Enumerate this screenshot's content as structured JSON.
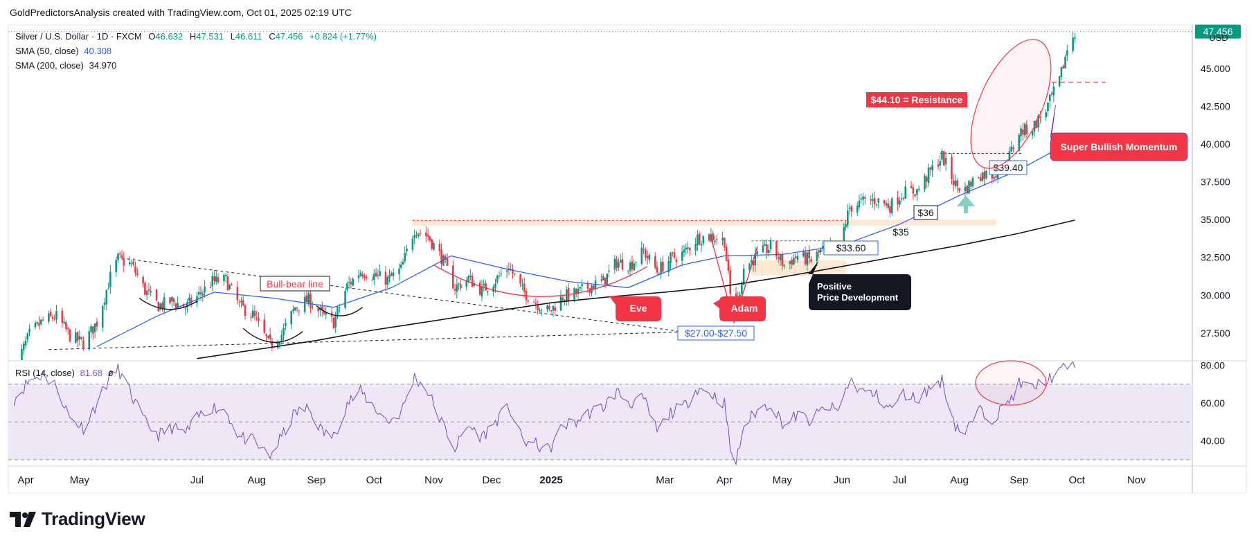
{
  "header": "GoldPredictorsAnalysis created with TradingView.com, Oct 01, 2025 02:19 UTC",
  "brand": "TradingView",
  "currency_label": "USD",
  "legend": {
    "symbol": "Silver / U.S. Dollar · 1D · FXCM",
    "o_label": "O",
    "o": "46.632",
    "h_label": "H",
    "h": "47.531",
    "l_label": "L",
    "l": "46.611",
    "c_label": "C",
    "c": "47.456",
    "change": "+0.824 (+1.77%)",
    "sma50_label": "SMA (50, close)",
    "sma50_value": "40.308",
    "sma200_label": "SMA (200, close)",
    "sma200_value": "34.970",
    "rsi_label": "RSI (14, close)",
    "rsi_value": "81.68",
    "rsi_extra": "ø"
  },
  "last_price_tag": "47.456",
  "colors": {
    "up": "#089981",
    "down": "#f23645",
    "sma50": "#2962ff",
    "sma200": "#131722",
    "rsi": "#7e57c2",
    "rsi_band": "#ede7f6",
    "annotation_red": "#f23645",
    "annotation_dark": "#131722",
    "resistance_bg": "#f23645"
  },
  "annotations": {
    "resistance": "$44.10 = Resistance",
    "momentum": "Super Bullish Momentum",
    "bull_bear": "Bull-bear line",
    "eve": "Eve",
    "adam": "Adam",
    "support_range": "$27.00-$27.50",
    "level_3360": "$33.60",
    "level_35": "$35",
    "level_36": "$36",
    "level_3940": "$39.40",
    "positive_line1": "Positive",
    "positive_line2": "Price Development"
  },
  "chart_data": [
    {
      "type": "candlestick",
      "title": "Silver / U.S. Dollar · 1D · FXCM",
      "x_range": [
        "2024-03-25",
        "2025-11-30"
      ],
      "ylim": [
        25.7,
        47.9
      ],
      "y_ticks": [
        "27.500",
        "30.000",
        "32.500",
        "35.000",
        "37.500",
        "40.000",
        "42.500",
        "45.000"
      ],
      "x_ticks": [
        "Apr",
        "May",
        "Jul",
        "Aug",
        "Sep",
        "Oct",
        "Nov",
        "Dec",
        "2025",
        "Mar",
        "Apr",
        "May",
        "Jun",
        "Jul",
        "Aug",
        "Sep",
        "Oct",
        "Nov"
      ],
      "close_path": [
        [
          "2024-03-28",
          25.0
        ],
        [
          "2024-04-05",
          27.4
        ],
        [
          "2024-04-12",
          28.3
        ],
        [
          "2024-04-19",
          28.6
        ],
        [
          "2024-04-26",
          27.3
        ],
        [
          "2024-05-03",
          26.8
        ],
        [
          "2024-05-10",
          28.2
        ],
        [
          "2024-05-17",
          31.2
        ],
        [
          "2024-05-21",
          32.4
        ],
        [
          "2024-05-28",
          32.0
        ],
        [
          "2024-06-04",
          30.3
        ],
        [
          "2024-06-11",
          29.3
        ],
        [
          "2024-06-18",
          29.6
        ],
        [
          "2024-06-25",
          29.2
        ],
        [
          "2024-07-02",
          30.0
        ],
        [
          "2024-07-09",
          30.9
        ],
        [
          "2024-07-16",
          31.0
        ],
        [
          "2024-07-23",
          29.3
        ],
        [
          "2024-07-30",
          28.7
        ],
        [
          "2024-08-05",
          27.3
        ],
        [
          "2024-08-08",
          26.7
        ],
        [
          "2024-08-14",
          27.4
        ],
        [
          "2024-08-21",
          29.2
        ],
        [
          "2024-08-28",
          29.7
        ],
        [
          "2024-09-04",
          28.7
        ],
        [
          "2024-09-10",
          28.2
        ],
        [
          "2024-09-17",
          30.6
        ],
        [
          "2024-09-24",
          31.6
        ],
        [
          "2024-10-01",
          31.3
        ],
        [
          "2024-10-08",
          31.0
        ],
        [
          "2024-10-15",
          31.7
        ],
        [
          "2024-10-22",
          34.4
        ],
        [
          "2024-10-29",
          33.9
        ],
        [
          "2024-11-05",
          32.5
        ],
        [
          "2024-11-12",
          30.5
        ],
        [
          "2024-11-19",
          31.1
        ],
        [
          "2024-11-26",
          30.3
        ],
        [
          "2024-12-03",
          31.0
        ],
        [
          "2024-12-10",
          31.9
        ],
        [
          "2024-12-17",
          30.3
        ],
        [
          "2024-12-24",
          29.5
        ],
        [
          "2024-12-31",
          28.9
        ],
        [
          "2025-01-07",
          29.9
        ],
        [
          "2025-01-14",
          30.1
        ],
        [
          "2025-01-21",
          30.6
        ],
        [
          "2025-01-28",
          30.9
        ],
        [
          "2025-02-04",
          32.2
        ],
        [
          "2025-02-11",
          32.0
        ],
        [
          "2025-02-18",
          32.9
        ],
        [
          "2025-02-25",
          31.6
        ],
        [
          "2025-03-04",
          32.4
        ],
        [
          "2025-03-11",
          32.8
        ],
        [
          "2025-03-18",
          33.8
        ],
        [
          "2025-03-25",
          33.9
        ],
        [
          "2025-04-01",
          33.6
        ],
        [
          "2025-04-04",
          30.0
        ],
        [
          "2025-04-08",
          29.7
        ],
        [
          "2025-04-11",
          31.8
        ],
        [
          "2025-04-18",
          32.6
        ],
        [
          "2025-04-25",
          33.2
        ],
        [
          "2025-05-02",
          32.0
        ],
        [
          "2025-05-09",
          32.6
        ],
        [
          "2025-05-16",
          32.3
        ],
        [
          "2025-05-23",
          33.1
        ],
        [
          "2025-05-30",
          33.0
        ],
        [
          "2025-06-05",
          35.8
        ],
        [
          "2025-06-12",
          36.2
        ],
        [
          "2025-06-19",
          36.3
        ],
        [
          "2025-06-26",
          35.9
        ],
        [
          "2025-07-03",
          36.8
        ],
        [
          "2025-07-10",
          36.9
        ],
        [
          "2025-07-17",
          38.2
        ],
        [
          "2025-07-23",
          39.2
        ],
        [
          "2025-07-30",
          37.3
        ],
        [
          "2025-08-04",
          37.0
        ],
        [
          "2025-08-11",
          38.0
        ],
        [
          "2025-08-18",
          38.0
        ],
        [
          "2025-08-25",
          38.6
        ],
        [
          "2025-09-01",
          40.8
        ],
        [
          "2025-09-08",
          41.1
        ],
        [
          "2025-09-15",
          42.3
        ],
        [
          "2025-09-22",
          44.2
        ],
        [
          "2025-09-26",
          46.3
        ],
        [
          "2025-09-30",
          47.456
        ]
      ],
      "series": [
        {
          "name": "SMA (50, close)",
          "points": [
            [
              "2024-05-10",
              26.6
            ],
            [
              "2024-06-10",
              28.6
            ],
            [
              "2024-07-10",
              30.2
            ],
            [
              "2024-08-10",
              29.8
            ],
            [
              "2024-09-10",
              29.2
            ],
            [
              "2024-10-10",
              30.5
            ],
            [
              "2024-11-10",
              32.6
            ],
            [
              "2024-12-10",
              31.7
            ],
            [
              "2025-01-10",
              30.9
            ],
            [
              "2025-02-10",
              30.5
            ],
            [
              "2025-03-10",
              32.0
            ],
            [
              "2025-04-01",
              32.6
            ],
            [
              "2025-05-01",
              32.7
            ],
            [
              "2025-06-01",
              33.3
            ],
            [
              "2025-07-01",
              34.7
            ],
            [
              "2025-08-01",
              36.6
            ],
            [
              "2025-09-01",
              38.3
            ],
            [
              "2025-09-30",
              40.308
            ]
          ]
        },
        {
          "name": "SMA (200, close)",
          "points": [
            [
              "2024-07-01",
              25.8
            ],
            [
              "2024-08-01",
              26.4
            ],
            [
              "2024-09-01",
              27.0
            ],
            [
              "2024-10-01",
              27.7
            ],
            [
              "2024-11-01",
              28.3
            ],
            [
              "2024-12-01",
              28.9
            ],
            [
              "2025-01-01",
              29.5
            ],
            [
              "2025-02-01",
              29.9
            ],
            [
              "2025-03-01",
              30.2
            ],
            [
              "2025-04-01",
              30.6
            ],
            [
              "2025-05-01",
              31.2
            ],
            [
              "2025-06-01",
              31.9
            ],
            [
              "2025-07-01",
              32.6
            ],
            [
              "2025-08-01",
              33.3
            ],
            [
              "2025-09-01",
              34.1
            ],
            [
              "2025-09-30",
              34.97
            ]
          ]
        }
      ],
      "levels": [
        44.1,
        39.4,
        35.0,
        33.6,
        36.0
      ]
    },
    {
      "type": "line",
      "title": "RSI (14, close)",
      "ylim": [
        27,
        82
      ],
      "y_ticks": [
        "40.00",
        "60.00",
        "80.00"
      ],
      "overbought": 70,
      "middle": 50,
      "oversold": 30,
      "points": [
        [
          "2024-03-28",
          62
        ],
        [
          "2024-04-05",
          72
        ],
        [
          "2024-04-12",
          75
        ],
        [
          "2024-04-19",
          69
        ],
        [
          "2024-04-26",
          52
        ],
        [
          "2024-05-03",
          47
        ],
        [
          "2024-05-10",
          60
        ],
        [
          "2024-05-17",
          74
        ],
        [
          "2024-05-21",
          78
        ],
        [
          "2024-05-28",
          64
        ],
        [
          "2024-06-04",
          50
        ],
        [
          "2024-06-11",
          43
        ],
        [
          "2024-06-18",
          47
        ],
        [
          "2024-06-25",
          44
        ],
        [
          "2024-07-02",
          53
        ],
        [
          "2024-07-09",
          58
        ],
        [
          "2024-07-16",
          56
        ],
        [
          "2024-07-23",
          42
        ],
        [
          "2024-07-30",
          40
        ],
        [
          "2024-08-05",
          34
        ],
        [
          "2024-08-08",
          32
        ],
        [
          "2024-08-14",
          42
        ],
        [
          "2024-08-21",
          55
        ],
        [
          "2024-08-28",
          57
        ],
        [
          "2024-09-04",
          45
        ],
        [
          "2024-09-10",
          42
        ],
        [
          "2024-09-17",
          60
        ],
        [
          "2024-09-24",
          66
        ],
        [
          "2024-10-01",
          58
        ],
        [
          "2024-10-08",
          50
        ],
        [
          "2024-10-15",
          55
        ],
        [
          "2024-10-22",
          74
        ],
        [
          "2024-10-29",
          66
        ],
        [
          "2024-11-05",
          50
        ],
        [
          "2024-11-12",
          36
        ],
        [
          "2024-11-19",
          48
        ],
        [
          "2024-11-26",
          42
        ],
        [
          "2024-12-03",
          50
        ],
        [
          "2024-12-10",
          58
        ],
        [
          "2024-12-17",
          40
        ],
        [
          "2024-12-24",
          38
        ],
        [
          "2024-12-31",
          35
        ],
        [
          "2025-01-07",
          48
        ],
        [
          "2025-01-14",
          50
        ],
        [
          "2025-01-21",
          55
        ],
        [
          "2025-01-28",
          58
        ],
        [
          "2025-02-04",
          66
        ],
        [
          "2025-02-11",
          60
        ],
        [
          "2025-02-18",
          62
        ],
        [
          "2025-02-25",
          45
        ],
        [
          "2025-03-04",
          55
        ],
        [
          "2025-03-11",
          58
        ],
        [
          "2025-03-18",
          68
        ],
        [
          "2025-03-25",
          65
        ],
        [
          "2025-04-01",
          60
        ],
        [
          "2025-04-04",
          36
        ],
        [
          "2025-04-07",
          28
        ],
        [
          "2025-04-11",
          48
        ],
        [
          "2025-04-18",
          56
        ],
        [
          "2025-04-25",
          60
        ],
        [
          "2025-05-02",
          48
        ],
        [
          "2025-05-09",
          54
        ],
        [
          "2025-05-16",
          50
        ],
        [
          "2025-05-23",
          58
        ],
        [
          "2025-05-30",
          56
        ],
        [
          "2025-06-05",
          72
        ],
        [
          "2025-06-12",
          66
        ],
        [
          "2025-06-19",
          64
        ],
        [
          "2025-06-26",
          57
        ],
        [
          "2025-07-03",
          65
        ],
        [
          "2025-07-10",
          62
        ],
        [
          "2025-07-17",
          68
        ],
        [
          "2025-07-23",
          72
        ],
        [
          "2025-07-30",
          48
        ],
        [
          "2025-08-04",
          44
        ],
        [
          "2025-08-11",
          56
        ],
        [
          "2025-08-18",
          52
        ],
        [
          "2025-08-25",
          58
        ],
        [
          "2025-09-01",
          70
        ],
        [
          "2025-09-08",
          68
        ],
        [
          "2025-09-15",
          72
        ],
        [
          "2025-09-22",
          76
        ],
        [
          "2025-09-26",
          80
        ],
        [
          "2025-09-30",
          81.68
        ]
      ]
    }
  ]
}
